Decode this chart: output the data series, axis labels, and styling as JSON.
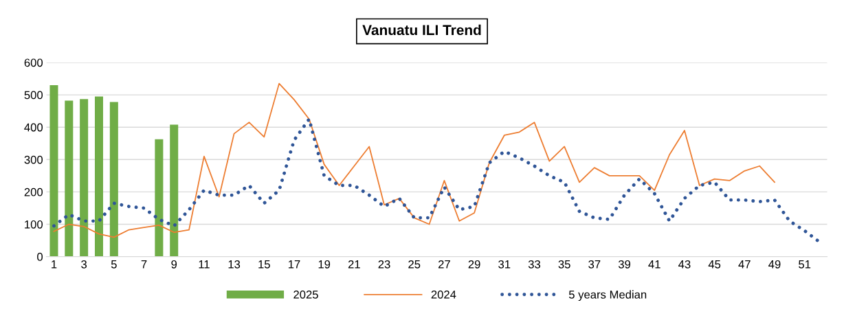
{
  "chart_data": {
    "type": "bar",
    "title": "Vanuatu ILI Trend",
    "categories": [
      "1",
      null,
      "3",
      null,
      "5",
      null,
      "7",
      null,
      "9",
      null,
      "11",
      null,
      "13",
      null,
      "15",
      null,
      "17",
      null,
      "19",
      null,
      "21",
      null,
      "23",
      null,
      "25",
      null,
      "27",
      null,
      "29",
      null,
      "31",
      null,
      "33",
      null,
      "35",
      null,
      "37",
      null,
      "39",
      null,
      "41",
      null,
      "43",
      null,
      "45",
      null,
      "47",
      null,
      "49",
      null,
      "51",
      null
    ],
    "series": [
      {
        "name": "2025",
        "color": "#70ad47",
        "values": [
          530,
          482,
          487,
          495,
          478,
          null,
          null,
          363,
          408,
          null,
          null,
          null,
          null,
          null,
          null,
          null,
          null,
          null,
          null,
          null,
          null,
          null,
          null,
          null,
          null,
          null,
          null,
          null,
          null,
          null,
          null,
          null,
          null,
          null,
          null,
          null,
          null,
          null,
          null,
          null,
          null,
          null,
          null,
          null,
          null,
          null,
          null,
          null,
          null,
          null,
          null,
          null
        ]
      },
      {
        "name": "2024",
        "type": "line",
        "color": "#ed7d31",
        "line_style": "solid",
        "values": [
          78,
          100,
          93,
          70,
          60,
          83,
          90,
          97,
          75,
          83,
          310,
          185,
          380,
          415,
          370,
          535,
          485,
          425,
          285,
          220,
          280,
          340,
          160,
          180,
          120,
          100,
          235,
          110,
          135,
          290,
          375,
          385,
          415,
          295,
          340,
          230,
          275,
          250,
          250,
          250,
          205,
          315,
          390,
          220,
          240,
          235,
          265,
          280,
          230,
          null,
          null,
          null
        ]
      },
      {
        "name": "5 years Median",
        "type": "line",
        "color": "#2f5597",
        "line_style": "dotted",
        "values": [
          95,
          130,
          110,
          110,
          165,
          155,
          150,
          115,
          95,
          145,
          205,
          190,
          190,
          220,
          165,
          205,
          360,
          425,
          250,
          220,
          220,
          190,
          155,
          180,
          120,
          120,
          215,
          145,
          155,
          290,
          325,
          305,
          280,
          250,
          230,
          140,
          120,
          115,
          190,
          240,
          195,
          110,
          180,
          220,
          230,
          175,
          175,
          170,
          175,
          110,
          80,
          45
        ]
      }
    ],
    "ylim": [
      0,
      600
    ],
    "yticks": [
      0,
      100,
      200,
      300,
      400,
      500,
      600
    ],
    "grid": "y",
    "legend": "bottom",
    "marker": "none"
  }
}
